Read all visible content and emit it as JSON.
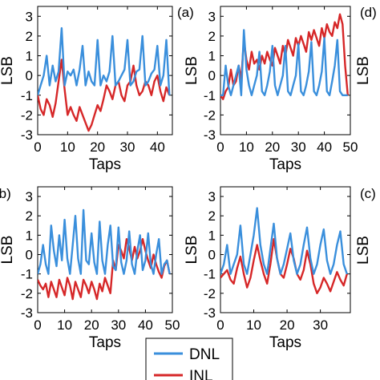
{
  "figure": {
    "legend": {
      "entries": [
        {
          "label": "DNL",
          "color": "#3a8fdc"
        },
        {
          "label": "INL",
          "color": "#d62728"
        }
      ]
    }
  },
  "chart_data": [
    {
      "type": "line",
      "panel_label": "(a)",
      "xlabel": "Taps",
      "ylabel": "LSB",
      "xlim": [
        0,
        50
      ],
      "ylim": [
        -3,
        3.5
      ],
      "xticks": [
        0,
        10,
        20,
        30,
        40,
        50
      ],
      "yticks": [
        -3,
        -2,
        -1,
        0,
        1,
        2,
        3
      ],
      "series": [
        {
          "name": "DNL",
          "color": "#3a8fdc",
          "x": [
            0,
            1,
            2,
            3,
            4,
            5,
            6,
            7,
            8,
            9,
            10,
            11,
            12,
            13,
            14,
            15,
            16,
            17,
            18,
            19,
            20,
            21,
            22,
            23,
            24,
            25,
            26,
            27,
            28,
            29,
            30,
            31,
            32,
            33,
            34,
            35,
            36,
            37,
            38,
            39,
            40,
            41,
            42,
            43,
            44,
            45,
            46,
            47,
            48,
            49
          ],
          "y": [
            -1,
            -1,
            0.5,
            -0.5,
            -1,
            -0.5,
            0,
            0.5,
            -1,
            2.3,
            0.3,
            -0.5,
            -1,
            -0.5,
            0,
            1.2,
            -0.8,
            -1,
            -0.5,
            0.2,
            1.5,
            -0.5,
            -1,
            -0.5,
            0,
            1.5,
            -0.8,
            -1,
            -0.5,
            0,
            1.6,
            -0.8,
            -1,
            -0.5,
            0.2,
            1.7,
            -0.8,
            -1,
            -0.5,
            0.2,
            1.9,
            -0.8,
            -1,
            -0.3,
            0.5,
            1.8,
            -0.8,
            -1,
            -1,
            -1
          ]
        },
        {
          "name": "INL",
          "color": "#d62728",
          "x": [
            0,
            1,
            2,
            3,
            4,
            5,
            6,
            7,
            8,
            9,
            10,
            11,
            12,
            13,
            14,
            15,
            16,
            17,
            18,
            19,
            20,
            21,
            22,
            23,
            24,
            25,
            26,
            27,
            28,
            29,
            30,
            31,
            32,
            33,
            34,
            35,
            36,
            37,
            38,
            39,
            40,
            41,
            42,
            43,
            44,
            45,
            46,
            47,
            48,
            49
          ],
          "y": [
            -1,
            -1.2,
            -0.8,
            -0.6,
            0.3,
            -0.5,
            -0.3,
            0.5,
            -0.2,
            1.8,
            0.8,
            0.3,
            1.2,
            0.6,
            0.8,
            0.3,
            1,
            0.6,
            1.2,
            0.8,
            0.5,
            1.4,
            1,
            0.6,
            1.5,
            1,
            1.8,
            1.4,
            1,
            1.9,
            1.5,
            2,
            1.6,
            1.2,
            2.2,
            1.8,
            2.3,
            1.9,
            1.5,
            2.4,
            1.9,
            2.6,
            2.2,
            2,
            2.7,
            2.4,
            3.1,
            2.6,
            0.5,
            -1
          ]
        }
      ]
    },
    {
      "type": "line",
      "panel_label": "(c)",
      "xlabel": "Taps",
      "ylabel": "LSB",
      "xlim": [
        0,
        39
      ],
      "ylim": [
        -3,
        3.5
      ],
      "xticks": [
        0,
        10,
        20,
        30
      ],
      "yticks": [
        -3,
        -2,
        -1,
        0,
        1,
        2,
        3
      ],
      "series": [
        {
          "name": "DNL",
          "color": "#3a8fdc",
          "x": [
            0,
            1,
            2,
            3,
            4,
            5,
            6,
            7,
            8,
            9,
            10,
            11,
            12,
            13,
            14,
            15,
            16,
            17,
            18,
            19,
            20,
            21,
            22,
            23,
            24,
            25,
            26,
            27,
            28,
            29,
            30,
            31,
            32,
            33,
            34,
            35,
            36,
            37,
            38
          ],
          "y": [
            -1,
            -0.5,
            0.5,
            -1,
            -0.5,
            0,
            1.5,
            -0.5,
            -1,
            0,
            1,
            2.4,
            0.5,
            -0.5,
            -1,
            0.3,
            1.6,
            -0.2,
            -1,
            -0.5,
            0.3,
            1.1,
            -0.3,
            -1,
            -0.5,
            0.5,
            1.4,
            -0.2,
            -1,
            -0.5,
            0.5,
            1.3,
            -0.3,
            -1,
            -0.5,
            0.5,
            1.2,
            -0.5,
            -1
          ]
        },
        {
          "name": "INL",
          "color": "#d62728",
          "x": [
            0,
            1,
            2,
            3,
            4,
            5,
            6,
            7,
            8,
            9,
            10,
            11,
            12,
            13,
            14,
            15,
            16,
            17,
            18,
            19,
            20,
            21,
            22,
            23,
            24,
            25,
            26,
            27,
            28,
            29,
            30,
            31,
            32,
            33,
            34,
            35,
            36,
            37,
            38
          ],
          "y": [
            -1.2,
            -1,
            -0.8,
            -1.3,
            -1.5,
            -0.7,
            -0.1,
            -1,
            -1.7,
            -1.2,
            -0.3,
            0.5,
            -0.3,
            -1,
            -1.5,
            -0.5,
            0.8,
            -0.2,
            -1,
            -1.2,
            -0.5,
            0.3,
            -0.2,
            -1,
            -1.3,
            -0.8,
            0.2,
            -0.5,
            -1.5,
            -2,
            -1.7,
            -1.2,
            -1.5,
            -1.9,
            -1.4,
            -0.9,
            -1.3,
            -1.6,
            -1
          ]
        }
      ]
    },
    {
      "type": "line",
      "panel_label": "(d)",
      "xlabel": "Taps",
      "ylabel": "LSB",
      "xlim": [
        0,
        50
      ],
      "ylim": [
        -3,
        3.5
      ],
      "xticks": [
        0,
        10,
        20,
        30,
        40,
        50
      ],
      "yticks": [
        -3,
        -2,
        -1,
        0,
        1,
        2,
        3
      ],
      "series": [
        {
          "name": "DNL",
          "color": "#3a8fdc",
          "x": [
            0,
            1,
            2,
            3,
            4,
            5,
            6,
            7,
            8,
            9,
            10,
            11,
            12,
            13,
            14,
            15,
            16,
            17,
            18,
            19,
            20,
            21,
            22,
            23,
            24,
            25,
            26,
            27,
            28,
            29,
            30,
            31,
            32,
            33,
            34,
            35,
            36,
            37,
            38,
            39,
            40,
            41,
            42,
            43,
            44,
            45,
            46,
            47,
            48,
            49
          ],
          "y": [
            -1,
            -0.5,
            0.5,
            -0.5,
            -1,
            1.5,
            0.2,
            -0.6,
            1,
            -0.3,
            1.8,
            -0.2,
            -1,
            0.5,
            2,
            -0.2,
            -1,
            2.3,
            -0.3,
            -0.5,
            1.1,
            -0.4,
            -1,
            1.7,
            -0.3,
            -1,
            0.5,
            1.5,
            -0.6,
            -0.8,
            1.4,
            -0.4,
            -1,
            -0.3,
            1.2,
            -0.5,
            -1,
            0.2,
            1,
            -0.8,
            -0.3,
            1.1,
            -0.5,
            -1,
            0,
            0.8,
            -1,
            -0.5,
            -0.3,
            -1
          ]
        },
        {
          "name": "INL",
          "color": "#d62728",
          "x": [
            0,
            1,
            2,
            3,
            4,
            5,
            6,
            7,
            8,
            9,
            10,
            11,
            12,
            13,
            14,
            15,
            16,
            17,
            18,
            19,
            20,
            21,
            22,
            23,
            24,
            25,
            26,
            27,
            28,
            29,
            30,
            31,
            32,
            33,
            34,
            35,
            36,
            37,
            38,
            39,
            40,
            41,
            42,
            43,
            44,
            45,
            46,
            47,
            48,
            49
          ],
          "y": [
            -1.3,
            -1.6,
            -1.8,
            -1.5,
            -2.2,
            -1.4,
            -1.8,
            -2.2,
            -1.3,
            -1.7,
            -2.1,
            -1.2,
            -1.6,
            -2.3,
            -1.4,
            -1.8,
            -2.2,
            -1.3,
            -1.6,
            -2,
            -1.4,
            -1.8,
            -2.3,
            -1.5,
            -1.9,
            -1.2,
            -1.6,
            -2,
            -0.3,
            -0.8,
            0.5,
            0.2,
            -0.2,
            0.8,
            0.3,
            -0.3,
            0.4,
            -0.2,
            0.2,
            0.8,
            0.2,
            -0.3,
            -0.7,
            0,
            -0.5,
            -0.9,
            -1.2,
            -0.6,
            -0.3,
            -1
          ]
        }
      ]
    },
    {
      "type": "line",
      "panel_label": "(b)",
      "xlabel": "Taps",
      "ylabel": "LSB",
      "xlim": [
        0,
        45
      ],
      "ylim": [
        -3,
        3.5
      ],
      "xticks": [
        0,
        10,
        20,
        30,
        40
      ],
      "yticks": [
        -3,
        -2,
        -1,
        0,
        1,
        2,
        3
      ],
      "series": [
        {
          "name": "DNL",
          "color": "#3a8fdc",
          "x": [
            0,
            1,
            2,
            3,
            4,
            5,
            6,
            7,
            8,
            9,
            10,
            11,
            12,
            13,
            14,
            15,
            16,
            17,
            18,
            19,
            20,
            21,
            22,
            23,
            24,
            25,
            26,
            27,
            28,
            29,
            30,
            31,
            32,
            33,
            34,
            35,
            36,
            37,
            38,
            39,
            40,
            41,
            42,
            43,
            44
          ],
          "y": [
            -1,
            -0.5,
            0,
            1,
            -0.5,
            0.5,
            -0.3,
            0.2,
            2.4,
            -0.5,
            0.2,
            0,
            0.3,
            -0.5,
            0.3,
            1.5,
            -0.5,
            0.2,
            -0.3,
            -0.5,
            1.8,
            -0.5,
            0,
            -0.3,
            0.2,
            2,
            -0.5,
            -0.3,
            0,
            0.3,
            1.8,
            -0.5,
            -0.3,
            0.2,
            0.3,
            2,
            -0.5,
            -0.3,
            0.1,
            0.3,
            1.5,
            -0.5,
            0,
            1.8,
            -1
          ]
        },
        {
          "name": "INL",
          "color": "#d62728",
          "x": [
            0,
            1,
            2,
            3,
            4,
            5,
            6,
            7,
            8,
            9,
            10,
            11,
            12,
            13,
            14,
            15,
            16,
            17,
            18,
            19,
            20,
            21,
            22,
            23,
            24,
            25,
            26,
            27,
            28,
            29,
            30,
            31,
            32,
            33,
            34,
            35,
            36,
            37,
            38,
            39,
            40,
            41,
            42,
            43,
            44
          ],
          "y": [
            -1,
            -1.7,
            -2,
            -1.2,
            -1.5,
            -2.1,
            -1.4,
            -0.3,
            0.8,
            -0.7,
            -2,
            -1.6,
            -2,
            -2.3,
            -1.6,
            -2,
            -2.4,
            -2.8,
            -2.5,
            -2,
            -1.5,
            -1.8,
            -1.2,
            -0.5,
            -0.8,
            -1.2,
            -0.5,
            -0.3,
            -1,
            -1.3,
            -0.5,
            -0.3,
            0.5,
            -0.5,
            -1,
            -0.8,
            -0.3,
            -0.5,
            -1,
            -0.3,
            0,
            -0.8,
            -1.3,
            -0.6,
            -1
          ]
        }
      ]
    }
  ]
}
